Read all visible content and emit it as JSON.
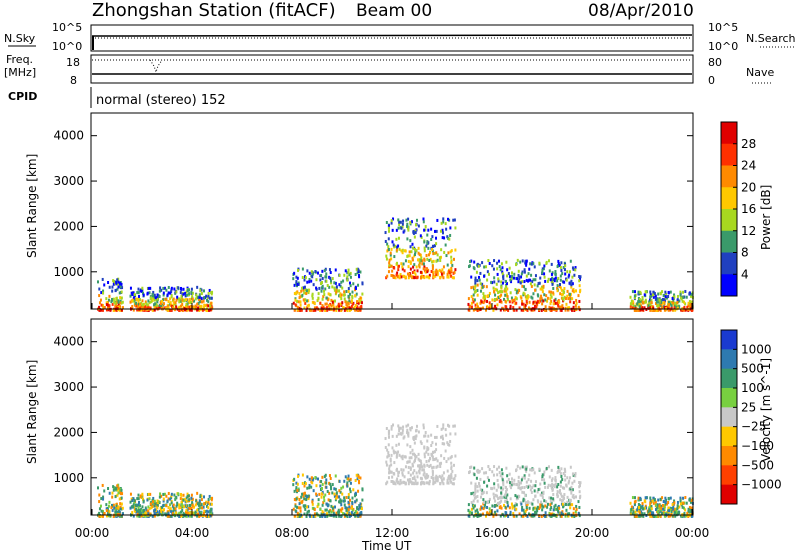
{
  "header": {
    "title": "Zhongshan Station (fitACF)",
    "beam": "Beam 00",
    "date": "08/Apr/2010"
  },
  "top_panels": {
    "nsky_label": "N.Sky",
    "nsky_ticks": [
      "10^5",
      "10^0"
    ],
    "nsearch_label": "N.Search",
    "nsearch_ticks": [
      "10^5",
      "10^0"
    ],
    "freq_label": "Freq.",
    "freq_unit": "[MHz]",
    "freq_ticks": [
      "18",
      "8"
    ],
    "nave_label": "Nave",
    "nave_ticks": [
      "80",
      "0"
    ],
    "cpid_label": "CPID",
    "cpid_text": "normal (stereo) 152"
  },
  "chart_data": [
    {
      "type": "heatmap",
      "title": "",
      "ylabel": "Slant Range [km]",
      "xlabel": "",
      "colorbar_label": "Power [dB]",
      "colorbar_ticks": [
        "28",
        "24",
        "20",
        "16",
        "12",
        "8",
        "4"
      ],
      "colorbar_colors": [
        "#e00000",
        "#ff3000",
        "#ff8a00",
        "#ffc800",
        "#a8d820",
        "#3a9a6a",
        "#2040c0",
        "#0000ff"
      ],
      "ylim": [
        180,
        4500
      ],
      "yticks": [
        1000,
        2000,
        3000,
        4000
      ],
      "xlim": [
        0,
        24
      ],
      "scatter_echoes": [
        {
          "t0": 0.2,
          "t1": 1.2,
          "r0": 180,
          "r1": 900
        },
        {
          "t0": 1.5,
          "t1": 4.8,
          "r0": 180,
          "r1": 700
        },
        {
          "t0": 8.0,
          "t1": 10.8,
          "r0": 180,
          "r1": 1100
        },
        {
          "t0": 11.7,
          "t1": 14.5,
          "r0": 900,
          "r1": 2200
        },
        {
          "t0": 15.0,
          "t1": 19.5,
          "r0": 180,
          "r1": 1300
        },
        {
          "t0": 21.5,
          "t1": 24.0,
          "r0": 180,
          "r1": 600
        }
      ]
    },
    {
      "type": "heatmap",
      "title": "",
      "ylabel": "Slant Range [km]",
      "xlabel": "Time UT",
      "colorbar_label": "Velocity  [m s^-1]",
      "colorbar_ticks": [
        "1000",
        "500",
        "100",
        "25",
        "−25",
        "−100",
        "−500",
        "−1000"
      ],
      "colorbar_colors": [
        "#1a3ad0",
        "#2e7ab0",
        "#3a9a6a",
        "#78d040",
        "#c8c8c8",
        "#ffc800",
        "#ff8a00",
        "#ff4000",
        "#e00000"
      ],
      "ylim": [
        180,
        4500
      ],
      "yticks": [
        1000,
        2000,
        3000,
        4000
      ],
      "xlim": [
        0,
        24
      ],
      "xticks": [
        "00:00",
        "04:00",
        "08:00",
        "12:00",
        "16:00",
        "20:00",
        "00:00"
      ]
    }
  ]
}
